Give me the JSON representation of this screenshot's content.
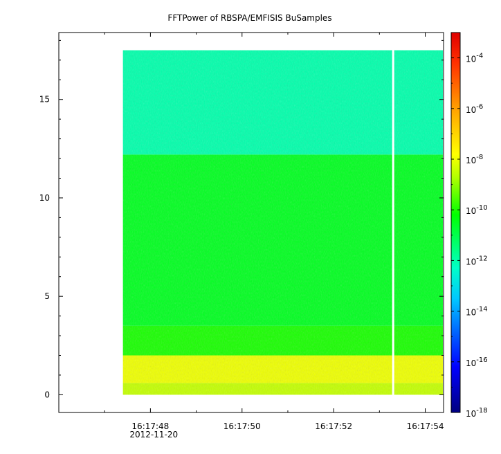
{
  "chart_data": {
    "type": "heatmap",
    "title": "FFTPower of RBSPA/EMFISIS  BuSamples",
    "xlabel": "",
    "ylabel": "",
    "x_range": [
      "16:17:46.0",
      "16:17:54.4"
    ],
    "y_range": [
      -0.9,
      18.4
    ],
    "x_ticks": [
      {
        "label": "16:17:48",
        "sub": "2012-11-20"
      },
      {
        "label": "16:17:50",
        "sub": ""
      },
      {
        "label": "16:17:52",
        "sub": ""
      },
      {
        "label": "16:17:54",
        "sub": ""
      }
    ],
    "x_minor_ticks": [
      "16:17:47",
      "16:17:49",
      "16:17:51",
      "16:17:53"
    ],
    "y_ticks": [
      0,
      5,
      10,
      15
    ],
    "data_extent": {
      "x_start": "16:17:47.4",
      "x_end": "16:17:54.4",
      "y_min": 0,
      "y_max": 17.5,
      "gap_at": "16:17:53.3"
    },
    "bands": [
      {
        "y_from": 0,
        "y_to": 0.6,
        "power": "3e-9"
      },
      {
        "y_from": 0.6,
        "y_to": 2.0,
        "power": "1e-8"
      },
      {
        "y_from": 2.0,
        "y_to": 3.5,
        "power": "1e-10"
      },
      {
        "y_from": 3.5,
        "y_to": 12.2,
        "power": "3e-11"
      },
      {
        "y_from": 12.2,
        "y_to": 17.5,
        "power": "1e-12"
      }
    ],
    "colorbar": {
      "scale": "log",
      "range": [
        "1e-18",
        "1e-3"
      ],
      "ticks": [
        {
          "base": "10",
          "exp": "-4"
        },
        {
          "base": "10",
          "exp": "-6"
        },
        {
          "base": "10",
          "exp": "-8"
        },
        {
          "base": "10",
          "exp": "-10"
        },
        {
          "base": "10",
          "exp": "-12"
        },
        {
          "base": "10",
          "exp": "-14"
        },
        {
          "base": "10",
          "exp": "-16"
        },
        {
          "base": "10",
          "exp": "-18"
        }
      ]
    },
    "colors": {
      "background": "#ffffff",
      "axis": "#000000",
      "gap": "#ffffff"
    }
  }
}
